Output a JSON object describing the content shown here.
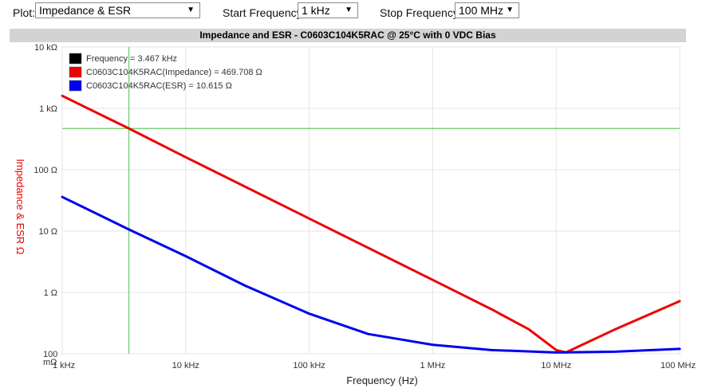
{
  "controls": {
    "plot_label": "Plot:",
    "plot_value": "Impedance & ESR",
    "start_label": "Start Frequency:",
    "start_value": "1 kHz",
    "stop_label": "Stop Frequency:",
    "stop_value": "100 MHz",
    "dropdown_arrow": "▼"
  },
  "colors": {
    "impedance": "#ee0000",
    "esr": "#0000ee",
    "cursor": "#66cc66",
    "legend_cursor_swatch": "#000000",
    "ylabel": "#ee0000"
  },
  "chart_data": {
    "type": "line",
    "title": "Impedance and ESR - C0603C104K5RAC @ 25°C with 0 VDC Bias",
    "xlabel": "Frequency (Hz)",
    "ylabel": "Impedance & ESR Ω",
    "x_scale": "log",
    "y_scale": "log",
    "xlim": [
      1000,
      100000000
    ],
    "ylim": [
      0.1,
      10000
    ],
    "x_ticks": [
      {
        "value": 1000,
        "label": "1 kHz"
      },
      {
        "value": 10000,
        "label": "10 kHz"
      },
      {
        "value": 100000,
        "label": "100 kHz"
      },
      {
        "value": 1000000,
        "label": "1 MHz"
      },
      {
        "value": 10000000,
        "label": "10 MHz"
      },
      {
        "value": 100000000,
        "label": "100 MHz"
      }
    ],
    "y_ticks": [
      {
        "value": 10000,
        "label": "10 kΩ"
      },
      {
        "value": 1000,
        "label": "1 kΩ"
      },
      {
        "value": 100,
        "label": "100 Ω"
      },
      {
        "value": 10,
        "label": "10 Ω"
      },
      {
        "value": 1,
        "label": "1 Ω"
      },
      {
        "value": 0.1,
        "label": "100 mΩ"
      }
    ],
    "cursor": {
      "frequency": 3467,
      "label": "Frequency = 3.467 kHz",
      "impedance_value": 469.708
    },
    "legend": [
      {
        "label": "Frequency = 3.467 kHz",
        "color": "#000000"
      },
      {
        "label": "C0603C104K5RAC(Impedance) = 469.708 Ω",
        "color": "#ee0000"
      },
      {
        "label": "C0603C104K5RAC(ESR) = 10.615 Ω",
        "color": "#0000ee"
      }
    ],
    "series": [
      {
        "name": "C0603C104K5RAC(Impedance)",
        "color": "#ee0000",
        "x": [
          1000,
          3467,
          10000,
          100000,
          1000000,
          3000000,
          6000000,
          10000000,
          12000000,
          15000000,
          30000000,
          100000000
        ],
        "y": [
          1600,
          469.7,
          160,
          16,
          1.6,
          0.53,
          0.25,
          0.115,
          0.105,
          0.13,
          0.25,
          0.72
        ]
      },
      {
        "name": "C0603C104K5RAC(ESR)",
        "color": "#0000ee",
        "x": [
          1000,
          3467,
          10000,
          30000,
          100000,
          300000,
          1000000,
          3000000,
          10000000,
          30000000,
          100000000
        ],
        "y": [
          36,
          10.615,
          3.9,
          1.3,
          0.45,
          0.21,
          0.14,
          0.115,
          0.105,
          0.108,
          0.12
        ]
      }
    ]
  }
}
